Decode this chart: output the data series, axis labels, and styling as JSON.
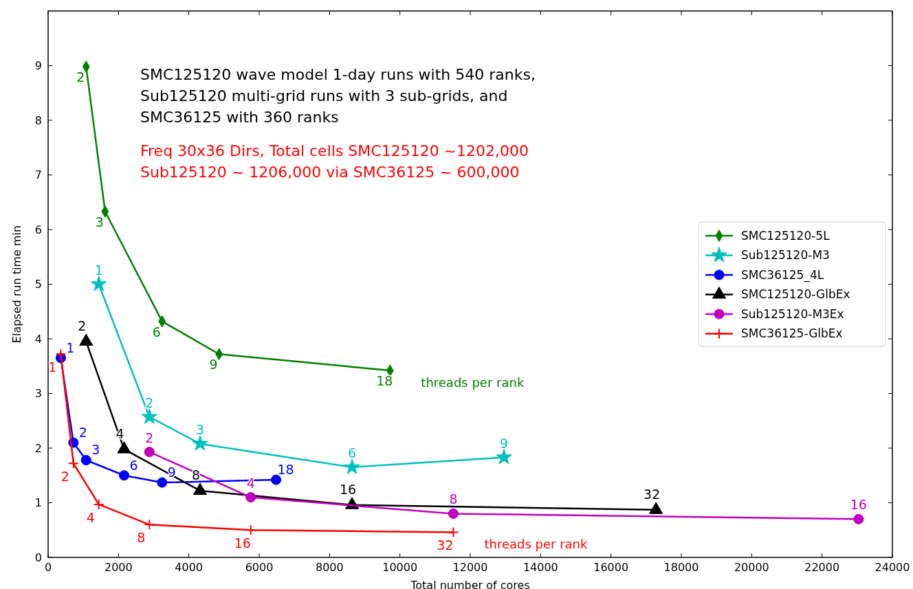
{
  "chart_data": {
    "type": "line",
    "title": "SMC125120 wave model 1-day runs with 540 ranks,\nSub125120 multi-grid runs with 3 sub-grids, and\nSMC36125 with 360 ranks",
    "subtitle": "Freq 30x36 Dirs, Total cells SMC125120 ~1202,000\nSub125120 ~ 1206,000  via  SMC36125 ~ 600,000",
    "xlabel": "Total number of cores",
    "ylabel": "Elapsed run time min",
    "xlim": [
      0,
      24000
    ],
    "xticks": [
      0,
      2000,
      4000,
      6000,
      8000,
      10000,
      12000,
      14000,
      16000,
      18000,
      20000,
      22000,
      24000
    ],
    "ylim": [
      0,
      10
    ],
    "yticks": [
      0,
      1,
      2,
      3,
      4,
      5,
      6,
      7,
      8,
      9
    ],
    "grid": false,
    "legend": "right",
    "annotations": [
      "threads per rank",
      "threads per rank",
      {
        "text": "2",
        "x": 1080,
        "y": 8.98
      },
      {
        "text": "3",
        "x": 1620,
        "y": 6.33
      },
      {
        "text": "6",
        "x": 3240,
        "y": 4.32
      },
      {
        "text": "9",
        "x": 4860,
        "y": 3.72
      },
      {
        "text": "18",
        "x": 9720,
        "y": 3.42
      },
      {
        "text": "1",
        "x": 1440,
        "y": 5.0
      },
      {
        "text": "2",
        "x": 2880,
        "y": 2.57
      },
      {
        "text": "3",
        "x": 4320,
        "y": 2.08
      },
      {
        "text": "6",
        "x": 8640,
        "y": 1.65
      },
      {
        "text": "9",
        "x": 12960,
        "y": 1.83
      },
      {
        "text": "1",
        "x": 360,
        "y": 3.65
      },
      {
        "text": "2",
        "x": 720,
        "y": 2.1
      },
      {
        "text": "3",
        "x": 1080,
        "y": 1.78
      },
      {
        "text": "6",
        "x": 2160,
        "y": 1.5
      },
      {
        "text": "9",
        "x": 3240,
        "y": 1.37
      },
      {
        "text": "18",
        "x": 6480,
        "y": 1.42
      },
      {
        "text": "2",
        "x": 1080,
        "y": 3.95
      },
      {
        "text": "4",
        "x": 2160,
        "y": 1.98
      },
      {
        "text": "8",
        "x": 4320,
        "y": 1.22
      },
      {
        "text": "16",
        "x": 8640,
        "y": 0.96
      },
      {
        "text": "32",
        "x": 17280,
        "y": 0.87
      },
      {
        "text": "2",
        "x": 2880,
        "y": 1.93
      },
      {
        "text": "4",
        "x": 5760,
        "y": 1.1
      },
      {
        "text": "8",
        "x": 11520,
        "y": 0.8
      },
      {
        "text": "16",
        "x": 23040,
        "y": 0.7
      },
      {
        "text": "1",
        "x": 360,
        "y": 3.72
      },
      {
        "text": "2",
        "x": 720,
        "y": 1.72
      },
      {
        "text": "4",
        "x": 1440,
        "y": 0.97
      },
      {
        "text": "8",
        "x": 2880,
        "y": 0.6
      },
      {
        "text": "16",
        "x": 5760,
        "y": 0.5
      },
      {
        "text": "32",
        "x": 11520,
        "y": 0.46
      }
    ],
    "series": [
      {
        "name": "SMC125120-5L",
        "color": "#008000",
        "marker": "diamond",
        "x": [
          1080,
          1620,
          3240,
          4860,
          9720
        ],
        "values": [
          8.98,
          6.33,
          4.32,
          3.72,
          3.42
        ]
      },
      {
        "name": "Sub125120-M3",
        "color": "#00bfbf",
        "marker": "star",
        "x": [
          1440,
          2880,
          4320,
          8640,
          12960
        ],
        "values": [
          5.0,
          2.57,
          2.08,
          1.65,
          1.83
        ]
      },
      {
        "name": "SMC36125_4L",
        "color": "#0000ff",
        "marker": "circle",
        "x": [
          360,
          720,
          1080,
          2160,
          3240,
          6480
        ],
        "values": [
          3.65,
          2.1,
          1.78,
          1.5,
          1.37,
          1.42
        ]
      },
      {
        "name": "SMC125120-GlbEx",
        "color": "#000000",
        "marker": "triangle",
        "x": [
          1080,
          2160,
          4320,
          8640,
          17280
        ],
        "values": [
          3.95,
          1.98,
          1.22,
          0.96,
          0.87
        ]
      },
      {
        "name": "Sub125120-M3Ex",
        "color": "#bf00bf",
        "marker": "circle",
        "x": [
          2880,
          5760,
          11520,
          23040
        ],
        "values": [
          1.93,
          1.1,
          0.8,
          0.7
        ]
      },
      {
        "name": "SMC36125-GlbEx",
        "color": "#ff0000",
        "marker": "cross",
        "x": [
          360,
          720,
          1440,
          2880,
          5760,
          11520
        ],
        "values": [
          3.72,
          1.72,
          0.97,
          0.6,
          0.5,
          0.46
        ]
      }
    ]
  }
}
